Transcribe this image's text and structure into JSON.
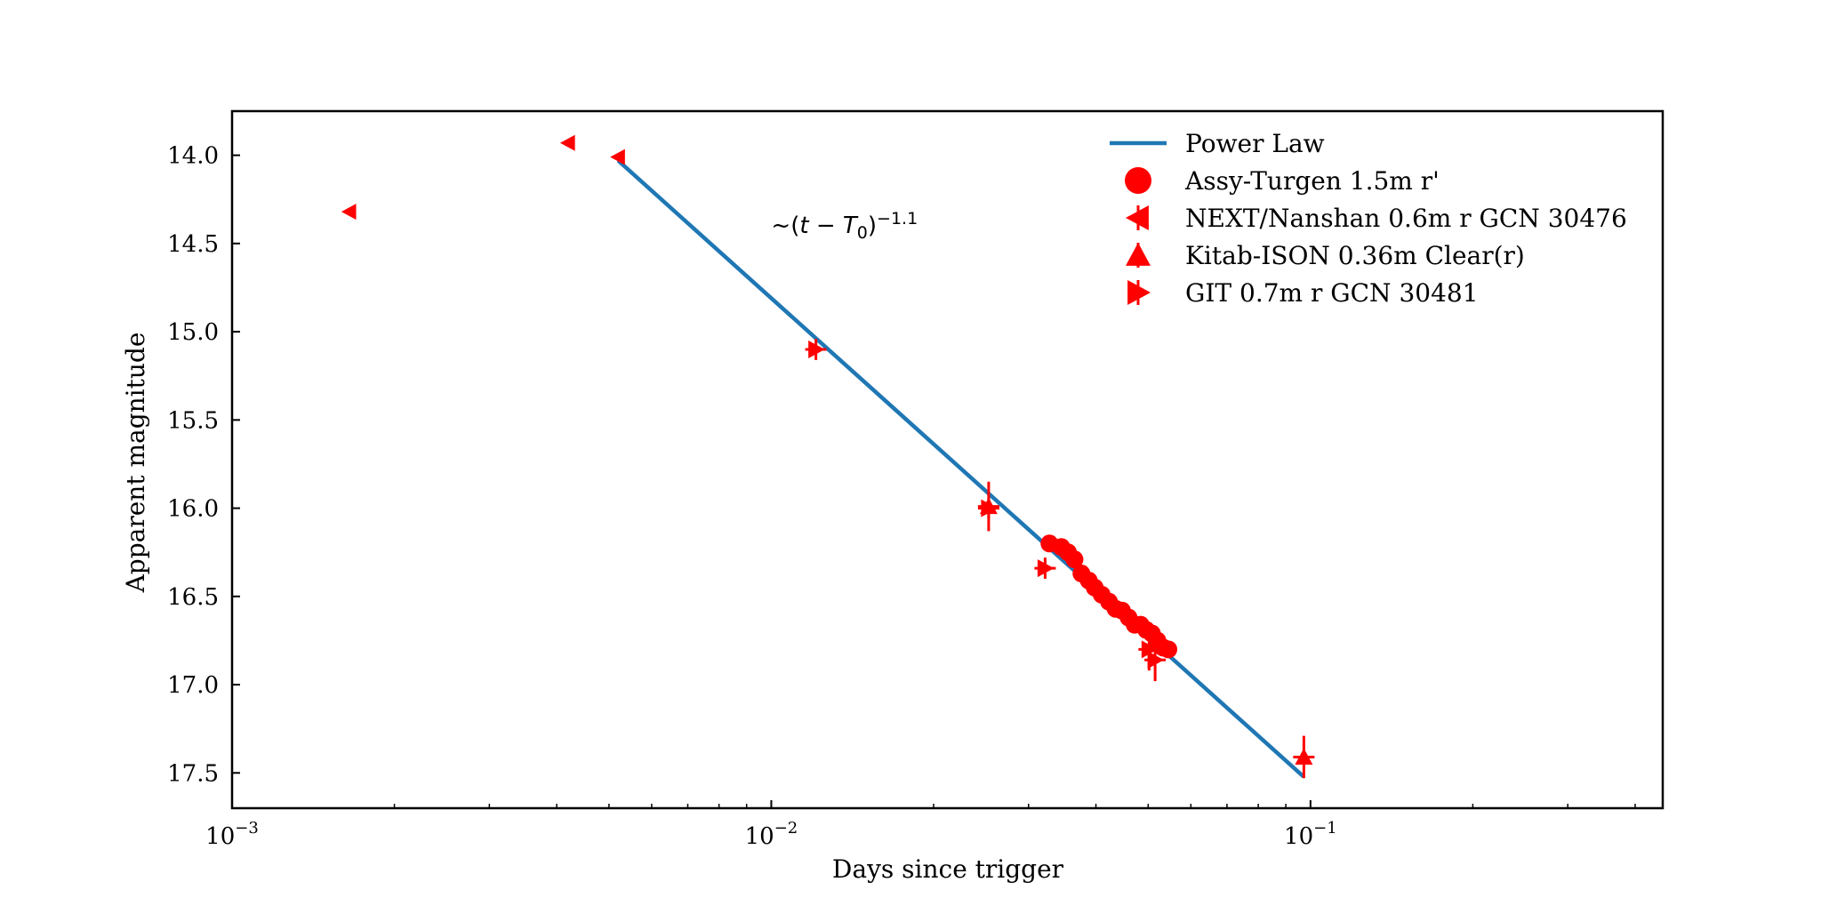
{
  "chart_data": {
    "type": "scatter",
    "xscale": "log",
    "xlim": [
      0.001,
      0.45
    ],
    "ylim": [
      17.7,
      13.75
    ],
    "y_inverted": true,
    "xlabel": "Days since trigger",
    "ylabel": "Apparent magnitude",
    "x_major_ticks": [
      {
        "value": 0.001,
        "base": "10",
        "exp": "−3"
      },
      {
        "value": 0.01,
        "base": "10",
        "exp": "−2"
      },
      {
        "value": 0.1,
        "base": "10",
        "exp": "−1"
      }
    ],
    "y_ticks": [
      {
        "value": 14.0,
        "label": "14.0"
      },
      {
        "value": 14.5,
        "label": "14.5"
      },
      {
        "value": 15.0,
        "label": "15.0"
      },
      {
        "value": 15.5,
        "label": "15.5"
      },
      {
        "value": 16.0,
        "label": "16.0"
      },
      {
        "value": 16.5,
        "label": "16.5"
      },
      {
        "value": 17.0,
        "label": "17.0"
      },
      {
        "value": 17.5,
        "label": "17.5"
      }
    ],
    "annotation": {
      "prefix": "~(",
      "var": "t",
      "minus": " − ",
      "T": "T",
      "sub": "0",
      "close": ")",
      "exp": "−1.1",
      "x": 0.01,
      "y": 14.44
    },
    "power_law": {
      "name": "Power Law",
      "color": "#1f77b4",
      "x": [
        0.0052,
        0.097
      ],
      "y": [
        14.03,
        17.52
      ]
    },
    "series": [
      {
        "name": "Assy-Turgen 1.5m r'",
        "marker": "circle",
        "color": "#ff0000",
        "points": [
          {
            "x": 0.0328,
            "y": 16.2
          },
          {
            "x": 0.0345,
            "y": 16.22
          },
          {
            "x": 0.0355,
            "y": 16.25
          },
          {
            "x": 0.0365,
            "y": 16.29
          },
          {
            "x": 0.0376,
            "y": 16.37
          },
          {
            "x": 0.0388,
            "y": 16.41
          },
          {
            "x": 0.0398,
            "y": 16.45
          },
          {
            "x": 0.041,
            "y": 16.49
          },
          {
            "x": 0.0423,
            "y": 16.53
          },
          {
            "x": 0.0435,
            "y": 16.57
          },
          {
            "x": 0.0447,
            "y": 16.58
          },
          {
            "x": 0.046,
            "y": 16.62
          },
          {
            "x": 0.0472,
            "y": 16.66
          },
          {
            "x": 0.0484,
            "y": 16.66
          },
          {
            "x": 0.0496,
            "y": 16.69
          },
          {
            "x": 0.0508,
            "y": 16.71
          },
          {
            "x": 0.052,
            "y": 16.75
          },
          {
            "x": 0.0533,
            "y": 16.79
          },
          {
            "x": 0.0545,
            "y": 16.8
          }
        ]
      },
      {
        "name": "NEXT/Nanshan 0.6m r GCN 30476",
        "marker": "triangle-left",
        "color": "#ff0000",
        "points": [
          {
            "x": 0.00165,
            "y": 14.32
          },
          {
            "x": 0.0042,
            "y": 13.93
          },
          {
            "x": 0.0052,
            "y": 14.01
          }
        ]
      },
      {
        "name": "Kitab-ISON 0.36m Clear(r)",
        "marker": "triangle-up",
        "color": "#ff0000",
        "points": [
          {
            "x": 0.0253,
            "y": 15.99,
            "yerr": 0.14
          },
          {
            "x": 0.0972,
            "y": 17.41,
            "yerr": 0.12
          }
        ]
      },
      {
        "name": "GIT 0.7m r GCN 30481",
        "marker": "triangle-right",
        "color": "#ff0000",
        "points": [
          {
            "x": 0.0121,
            "y": 15.1,
            "yerr": 0.06
          },
          {
            "x": 0.0253,
            "y": 16.0,
            "yerr": 0.06
          },
          {
            "x": 0.0322,
            "y": 16.34,
            "yerr": 0.06
          },
          {
            "x": 0.0502,
            "y": 16.8,
            "yerr": 0.12
          },
          {
            "x": 0.0515,
            "y": 16.86,
            "yerr": 0.12
          }
        ]
      }
    ],
    "legend": {
      "placement": "upper-right, inside axes"
    }
  }
}
